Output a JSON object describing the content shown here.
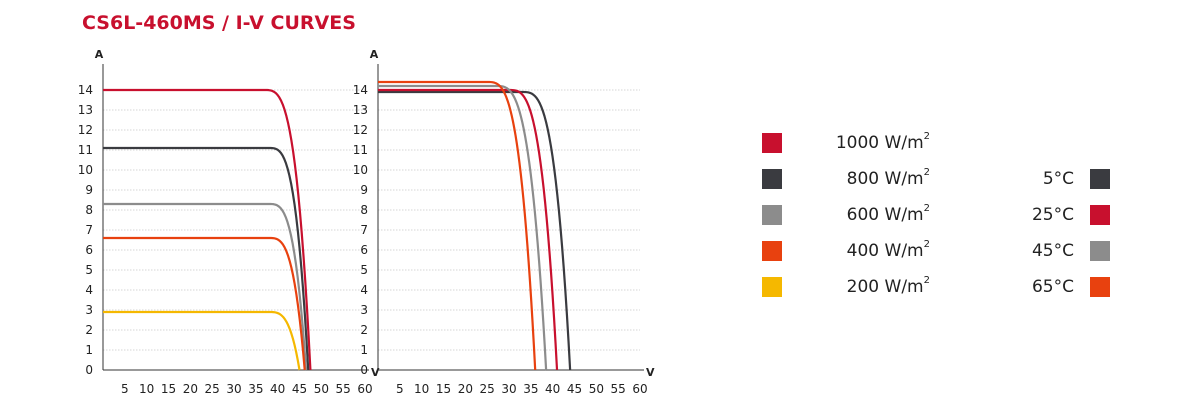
{
  "title": "CS6L-460MS / I-V CURVES",
  "colors": {
    "red": "#c8102e",
    "dark": "#3a3b40",
    "gray": "#8c8c8c",
    "orange": "#e8410f",
    "yellow": "#f5b800"
  },
  "legend_irradiance": [
    {
      "value": "1000",
      "unit": "W/m",
      "sup": "2",
      "color": "#c8102e"
    },
    {
      "value": "800",
      "unit": "W/m",
      "sup": "2",
      "color": "#3a3b40"
    },
    {
      "value": "600",
      "unit": "W/m",
      "sup": "2",
      "color": "#8c8c8c"
    },
    {
      "value": "400",
      "unit": "W/m",
      "sup": "2",
      "color": "#e8410f"
    },
    {
      "value": "200",
      "unit": "W/m",
      "sup": "2",
      "color": "#f5b800"
    }
  ],
  "legend_temperature": [
    {
      "label": "5°C",
      "color": "#3a3b40"
    },
    {
      "label": "25°C",
      "color": "#c8102e"
    },
    {
      "label": "45°C",
      "color": "#8c8c8c"
    },
    {
      "label": "65°C",
      "color": "#e8410f"
    }
  ],
  "chart_data": [
    {
      "type": "line",
      "xlabel": "V",
      "ylabel": "A",
      "xlim": [
        0,
        60
      ],
      "ylim": [
        0,
        15
      ],
      "x_ticks": [
        5,
        10,
        15,
        20,
        25,
        30,
        35,
        40,
        45,
        50,
        55,
        60
      ],
      "y_ticks": [
        0,
        1,
        2,
        3,
        4,
        5,
        6,
        7,
        8,
        9,
        10,
        11,
        12,
        13,
        14
      ],
      "grid": true,
      "series": [
        {
          "color": "#c8102e",
          "isc": 14.0,
          "voc": 47.5,
          "knee": 37,
          "end": 44.5
        },
        {
          "color": "#3a3b40",
          "isc": 11.1,
          "voc": 47.0,
          "knee": 38,
          "end": 44.0
        },
        {
          "color": "#8c8c8c",
          "isc": 8.3,
          "voc": 46.5,
          "knee": 38,
          "end": 43.5
        },
        {
          "color": "#e8410f",
          "isc": 6.6,
          "voc": 46.2,
          "knee": 38,
          "end": 43.5
        },
        {
          "color": "#f5b800",
          "isc": 2.9,
          "voc": 45.0,
          "knee": 38,
          "end": 42.5
        }
      ]
    },
    {
      "type": "line",
      "xlabel": "V",
      "ylabel": "A",
      "xlim": [
        0,
        60
      ],
      "ylim": [
        0,
        15
      ],
      "x_ticks": [
        5,
        10,
        15,
        20,
        25,
        30,
        35,
        40,
        45,
        50,
        55,
        60
      ],
      "y_ticks": [
        0,
        1,
        2,
        3,
        4,
        5,
        6,
        7,
        8,
        9,
        10,
        11,
        12,
        13,
        14
      ],
      "grid": true,
      "series": [
        {
          "color": "#3a3b40",
          "isc": 13.9,
          "voc": 44.0,
          "knee": 33,
          "end": 42.0
        },
        {
          "color": "#c8102e",
          "isc": 14.0,
          "voc": 41.0,
          "knee": 30,
          "end": 38.5
        },
        {
          "color": "#8c8c8c",
          "isc": 14.2,
          "voc": 38.5,
          "knee": 27,
          "end": 35.5
        },
        {
          "color": "#e8410f",
          "isc": 14.4,
          "voc": 36.0,
          "knee": 25,
          "end": 33.0
        }
      ]
    }
  ]
}
